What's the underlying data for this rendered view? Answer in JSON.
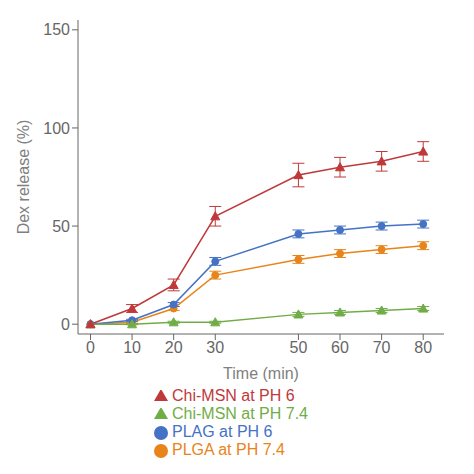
{
  "chart_data": {
    "type": "line",
    "xlabel": "Time (min)",
    "ylabel": "Dex release (%)",
    "x": [
      0,
      10,
      20,
      30,
      50,
      60,
      70,
      80
    ],
    "series": [
      {
        "name": "PLGA at PH 7.4",
        "color": "#E8841A",
        "marker": "circle",
        "values": [
          0,
          1,
          8,
          25,
          33,
          36,
          38,
          40
        ],
        "errors": [
          0,
          0.5,
          1,
          2,
          2,
          2,
          2,
          2
        ]
      },
      {
        "name": "PLAG at PH 6",
        "color": "#4472C4",
        "marker": "circle",
        "values": [
          0,
          2,
          10,
          32,
          46,
          48,
          50,
          51
        ],
        "errors": [
          0,
          0.5,
          1,
          2,
          2,
          2,
          2,
          2
        ]
      },
      {
        "name": "Chi-MSN at PH 7.4",
        "color": "#70AD47",
        "marker": "triangle",
        "values": [
          0,
          0,
          1,
          1,
          5,
          6,
          7,
          8
        ],
        "errors": [
          0,
          0.3,
          0.5,
          0.5,
          1,
          1,
          1,
          1
        ]
      },
      {
        "name": "Chi-MSN at PH 6",
        "color": "#C0393A",
        "marker": "triangle",
        "values": [
          0,
          8,
          20,
          55,
          76,
          80,
          83,
          88
        ],
        "errors": [
          0,
          2,
          3,
          5,
          6,
          5,
          5,
          5
        ]
      }
    ],
    "xlim": [
      -3,
      85
    ],
    "ylim": [
      -5,
      155
    ],
    "xticks": [
      0,
      10,
      20,
      30,
      50,
      60,
      70,
      80
    ],
    "yticks": [
      0,
      50,
      100,
      150
    ],
    "grid": false,
    "legend": "bottom"
  }
}
